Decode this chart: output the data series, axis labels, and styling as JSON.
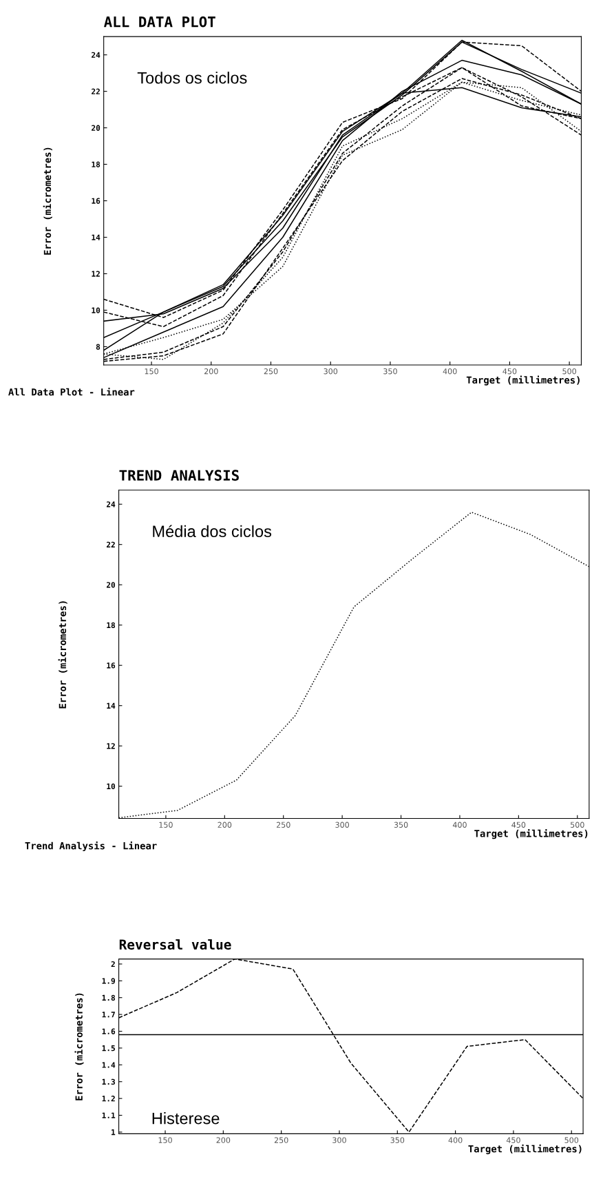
{
  "chart_data": [
    {
      "type": "line",
      "title": "ALL DATA PLOT",
      "xlabel": "Target (millimetres)",
      "ylabel": "Error (micrometres)",
      "annotations": [
        "Todos os ciclos",
        "All Data Plot - Linear"
      ],
      "x": [
        110,
        160,
        210,
        260,
        310,
        360,
        410,
        460,
        510
      ],
      "xlim": [
        110,
        510
      ],
      "ylim": [
        7,
        25
      ],
      "xticks": [
        150,
        200,
        250,
        300,
        350,
        400,
        450,
        500
      ],
      "yticks": [
        8,
        10,
        12,
        14,
        16,
        18,
        20,
        22,
        24
      ],
      "grid": false,
      "series": [
        {
          "color": "#000000",
          "line_style": "solid",
          "values": [
            7.8,
            9.9,
            11.4,
            15.2,
            19.8,
            21.9,
            24.8,
            23.1,
            21.3
          ]
        },
        {
          "color": "#000000",
          "line_style": "dashed",
          "values": [
            10.6,
            9.6,
            11.1,
            15.5,
            20.3,
            21.6,
            24.7,
            24.5,
            22.0
          ]
        },
        {
          "color": "#000000",
          "line_style": "solid",
          "values": [
            8.5,
            9.9,
            11.3,
            14.9,
            19.5,
            21.8,
            24.7,
            23.2,
            21.9
          ]
        },
        {
          "color": "#000000",
          "line_style": "dashed",
          "values": [
            9.9,
            9.1,
            10.8,
            15.3,
            19.9,
            21.7,
            23.3,
            21.7,
            19.6
          ]
        },
        {
          "color": "#000000",
          "line_style": "solid",
          "values": [
            7.4,
            8.8,
            10.2,
            14.0,
            19.3,
            22.0,
            23.7,
            22.9,
            21.3
          ]
        },
        {
          "color": "#000000",
          "line_style": "solid",
          "values": [
            9.4,
            9.8,
            11.2,
            14.5,
            19.6,
            21.9,
            22.2,
            21.1,
            20.6
          ]
        },
        {
          "color": "#000000",
          "line_style": "dotted",
          "values": [
            7.6,
            8.5,
            9.5,
            12.4,
            18.5,
            19.9,
            22.5,
            22.2,
            19.8
          ]
        },
        {
          "color": "#000000",
          "line_style": "dashed",
          "values": [
            7.3,
            7.7,
            9.1,
            13.2,
            18.6,
            21.2,
            23.3,
            21.2,
            20.5
          ]
        },
        {
          "color": "#000000",
          "line_style": "dashed",
          "values": [
            7.2,
            7.5,
            8.7,
            13.4,
            18.2,
            20.9,
            22.7,
            21.8,
            20.5
          ]
        },
        {
          "color": "#000000",
          "line_style": "dotted",
          "values": [
            7.6,
            7.3,
            9.3,
            12.9,
            19.0,
            20.5,
            22.5,
            21.5,
            20.7
          ]
        }
      ]
    },
    {
      "type": "line",
      "title": "TREND ANALYSIS",
      "xlabel": "Target (millimetres)",
      "ylabel": "Error (micrometres)",
      "annotations": [
        "Média dos ciclos",
        "Trend Analysis - Linear"
      ],
      "x": [
        110,
        160,
        210,
        260,
        310,
        360,
        410,
        460,
        510
      ],
      "xlim": [
        110,
        510
      ],
      "ylim": [
        8.4,
        24.7
      ],
      "xticks": [
        150,
        200,
        250,
        300,
        350,
        400,
        450,
        500
      ],
      "yticks": [
        10,
        12,
        14,
        16,
        18,
        20,
        22,
        24
      ],
      "grid": false,
      "series": [
        {
          "color": "#000000",
          "line_style": "dotted",
          "values": [
            8.43,
            8.8,
            10.3,
            13.5,
            18.9,
            21.3,
            23.6,
            22.5,
            20.9
          ]
        }
      ]
    },
    {
      "type": "line",
      "title": "Reversal value",
      "xlabel": "Target (millimetres)",
      "ylabel": "Error (micrometres)",
      "annotations": [
        "Histerese"
      ],
      "x": [
        110,
        160,
        210,
        260,
        310,
        360,
        410,
        460,
        510
      ],
      "xlim": [
        110,
        510
      ],
      "ylim": [
        0.99,
        2.03
      ],
      "xticks": [
        150,
        200,
        250,
        300,
        350,
        400,
        450,
        500
      ],
      "yticks": [
        {
          "value": 1,
          "label": "1"
        },
        1.1,
        1.2,
        1.3,
        1.4,
        1.5,
        1.6,
        1.7,
        1.8,
        1.9,
        {
          "value": 2,
          "label": "2"
        }
      ],
      "grid": false,
      "ref_lines": [
        {
          "axis": "y",
          "value": 1.58,
          "color": "#000000",
          "line_style": "solid"
        }
      ],
      "series": [
        {
          "color": "#000000",
          "line_style": "dashed",
          "values": [
            1.68,
            1.83,
            2.03,
            1.97,
            1.41,
            1.0,
            1.51,
            1.55,
            1.2
          ]
        }
      ]
    }
  ]
}
